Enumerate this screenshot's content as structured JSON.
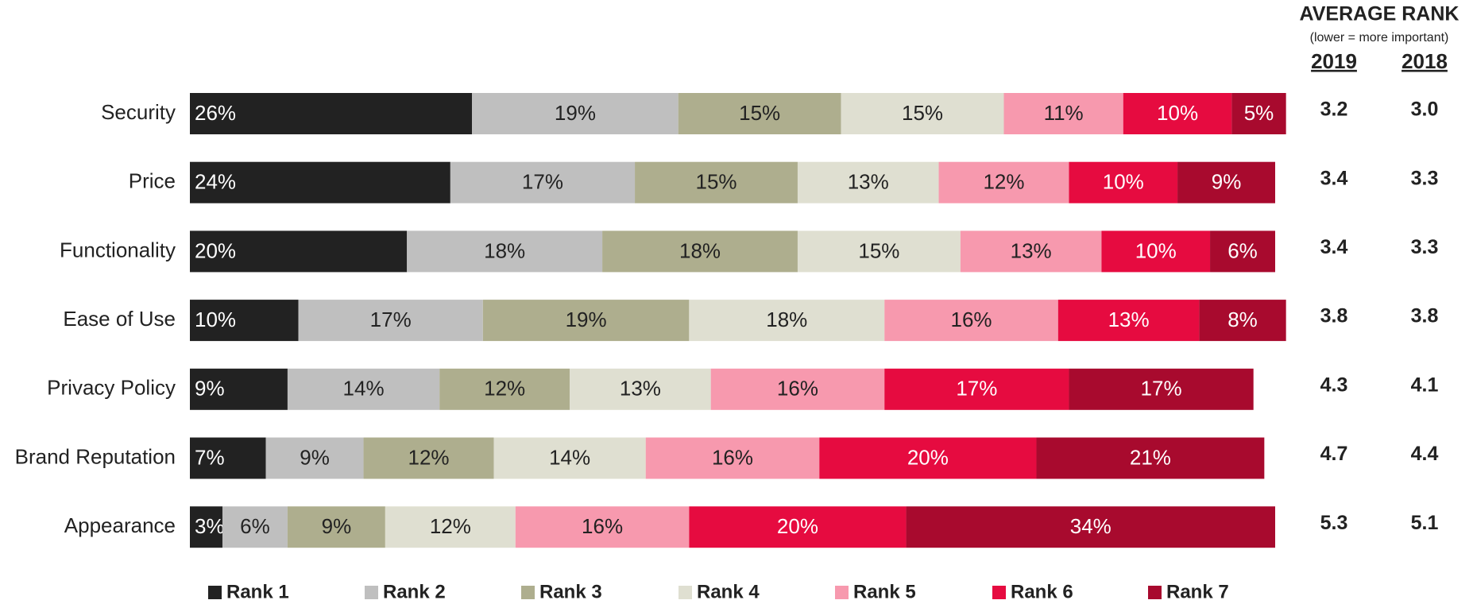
{
  "chart_data": {
    "type": "stacked_barh",
    "categories": [
      "Security",
      "Price",
      "Functionality",
      "Ease of Use",
      "Privacy Policy",
      "Brand Reputation",
      "Appearance"
    ],
    "xlim": [
      0,
      100
    ],
    "legend": "bottom",
    "series": [
      {
        "name": "Rank 1",
        "color": "#222222",
        "values": [
          26,
          24,
          20,
          10,
          9,
          7,
          3
        ],
        "value_labels": [
          "26%",
          "24%",
          "20%",
          "10%",
          "9%",
          "7%",
          "3%"
        ]
      },
      {
        "name": "Rank 2",
        "color": "#bfbfbf",
        "values": [
          19,
          17,
          18,
          17,
          14,
          9,
          6
        ],
        "value_labels": [
          "19%",
          "17%",
          "18%",
          "17%",
          "14%",
          "9%",
          "6%"
        ]
      },
      {
        "name": "Rank 3",
        "color": "#aeae8e",
        "values": [
          15,
          15,
          18,
          19,
          12,
          12,
          9
        ],
        "value_labels": [
          "15%",
          "15%",
          "18%",
          "19%",
          "12%",
          "12%",
          "9%"
        ]
      },
      {
        "name": "Rank 4",
        "color": "#dfdfd1",
        "values": [
          15,
          13,
          15,
          18,
          13,
          14,
          12
        ],
        "value_labels": [
          "15%",
          "13%",
          "15%",
          "18%",
          "13%",
          "14%",
          "12%"
        ]
      },
      {
        "name": "Rank 5",
        "color": "#f799ae",
        "values": [
          11,
          12,
          13,
          16,
          16,
          16,
          16
        ],
        "value_labels": [
          "11%",
          "12%",
          "13%",
          "16%",
          "16%",
          "16%",
          "16%"
        ]
      },
      {
        "name": "Rank 6",
        "color": "#e60b40",
        "values": [
          10,
          10,
          10,
          13,
          17,
          20,
          20
        ],
        "value_labels": [
          "10%",
          "10%",
          "10%",
          "13%",
          "17%",
          "20%",
          "20%"
        ]
      },
      {
        "name": "Rank 7",
        "color": "#a80a2e",
        "values": [
          5,
          9,
          6,
          8,
          17,
          21,
          34
        ],
        "value_labels": [
          "5%",
          "9%",
          "6%",
          "8%",
          "17%",
          "21%",
          "34%"
        ]
      }
    ],
    "average_rank": {
      "title": "AVERAGE RANK",
      "subtitle": "(lower = more important)",
      "columns": [
        "2019",
        "2018"
      ],
      "rows": [
        [
          "3.2",
          "3.0"
        ],
        [
          "3.4",
          "3.3"
        ],
        [
          "3.4",
          "3.3"
        ],
        [
          "3.8",
          "3.8"
        ],
        [
          "4.3",
          "4.1"
        ],
        [
          "4.7",
          "4.4"
        ],
        [
          "5.3",
          "5.1"
        ]
      ]
    }
  }
}
